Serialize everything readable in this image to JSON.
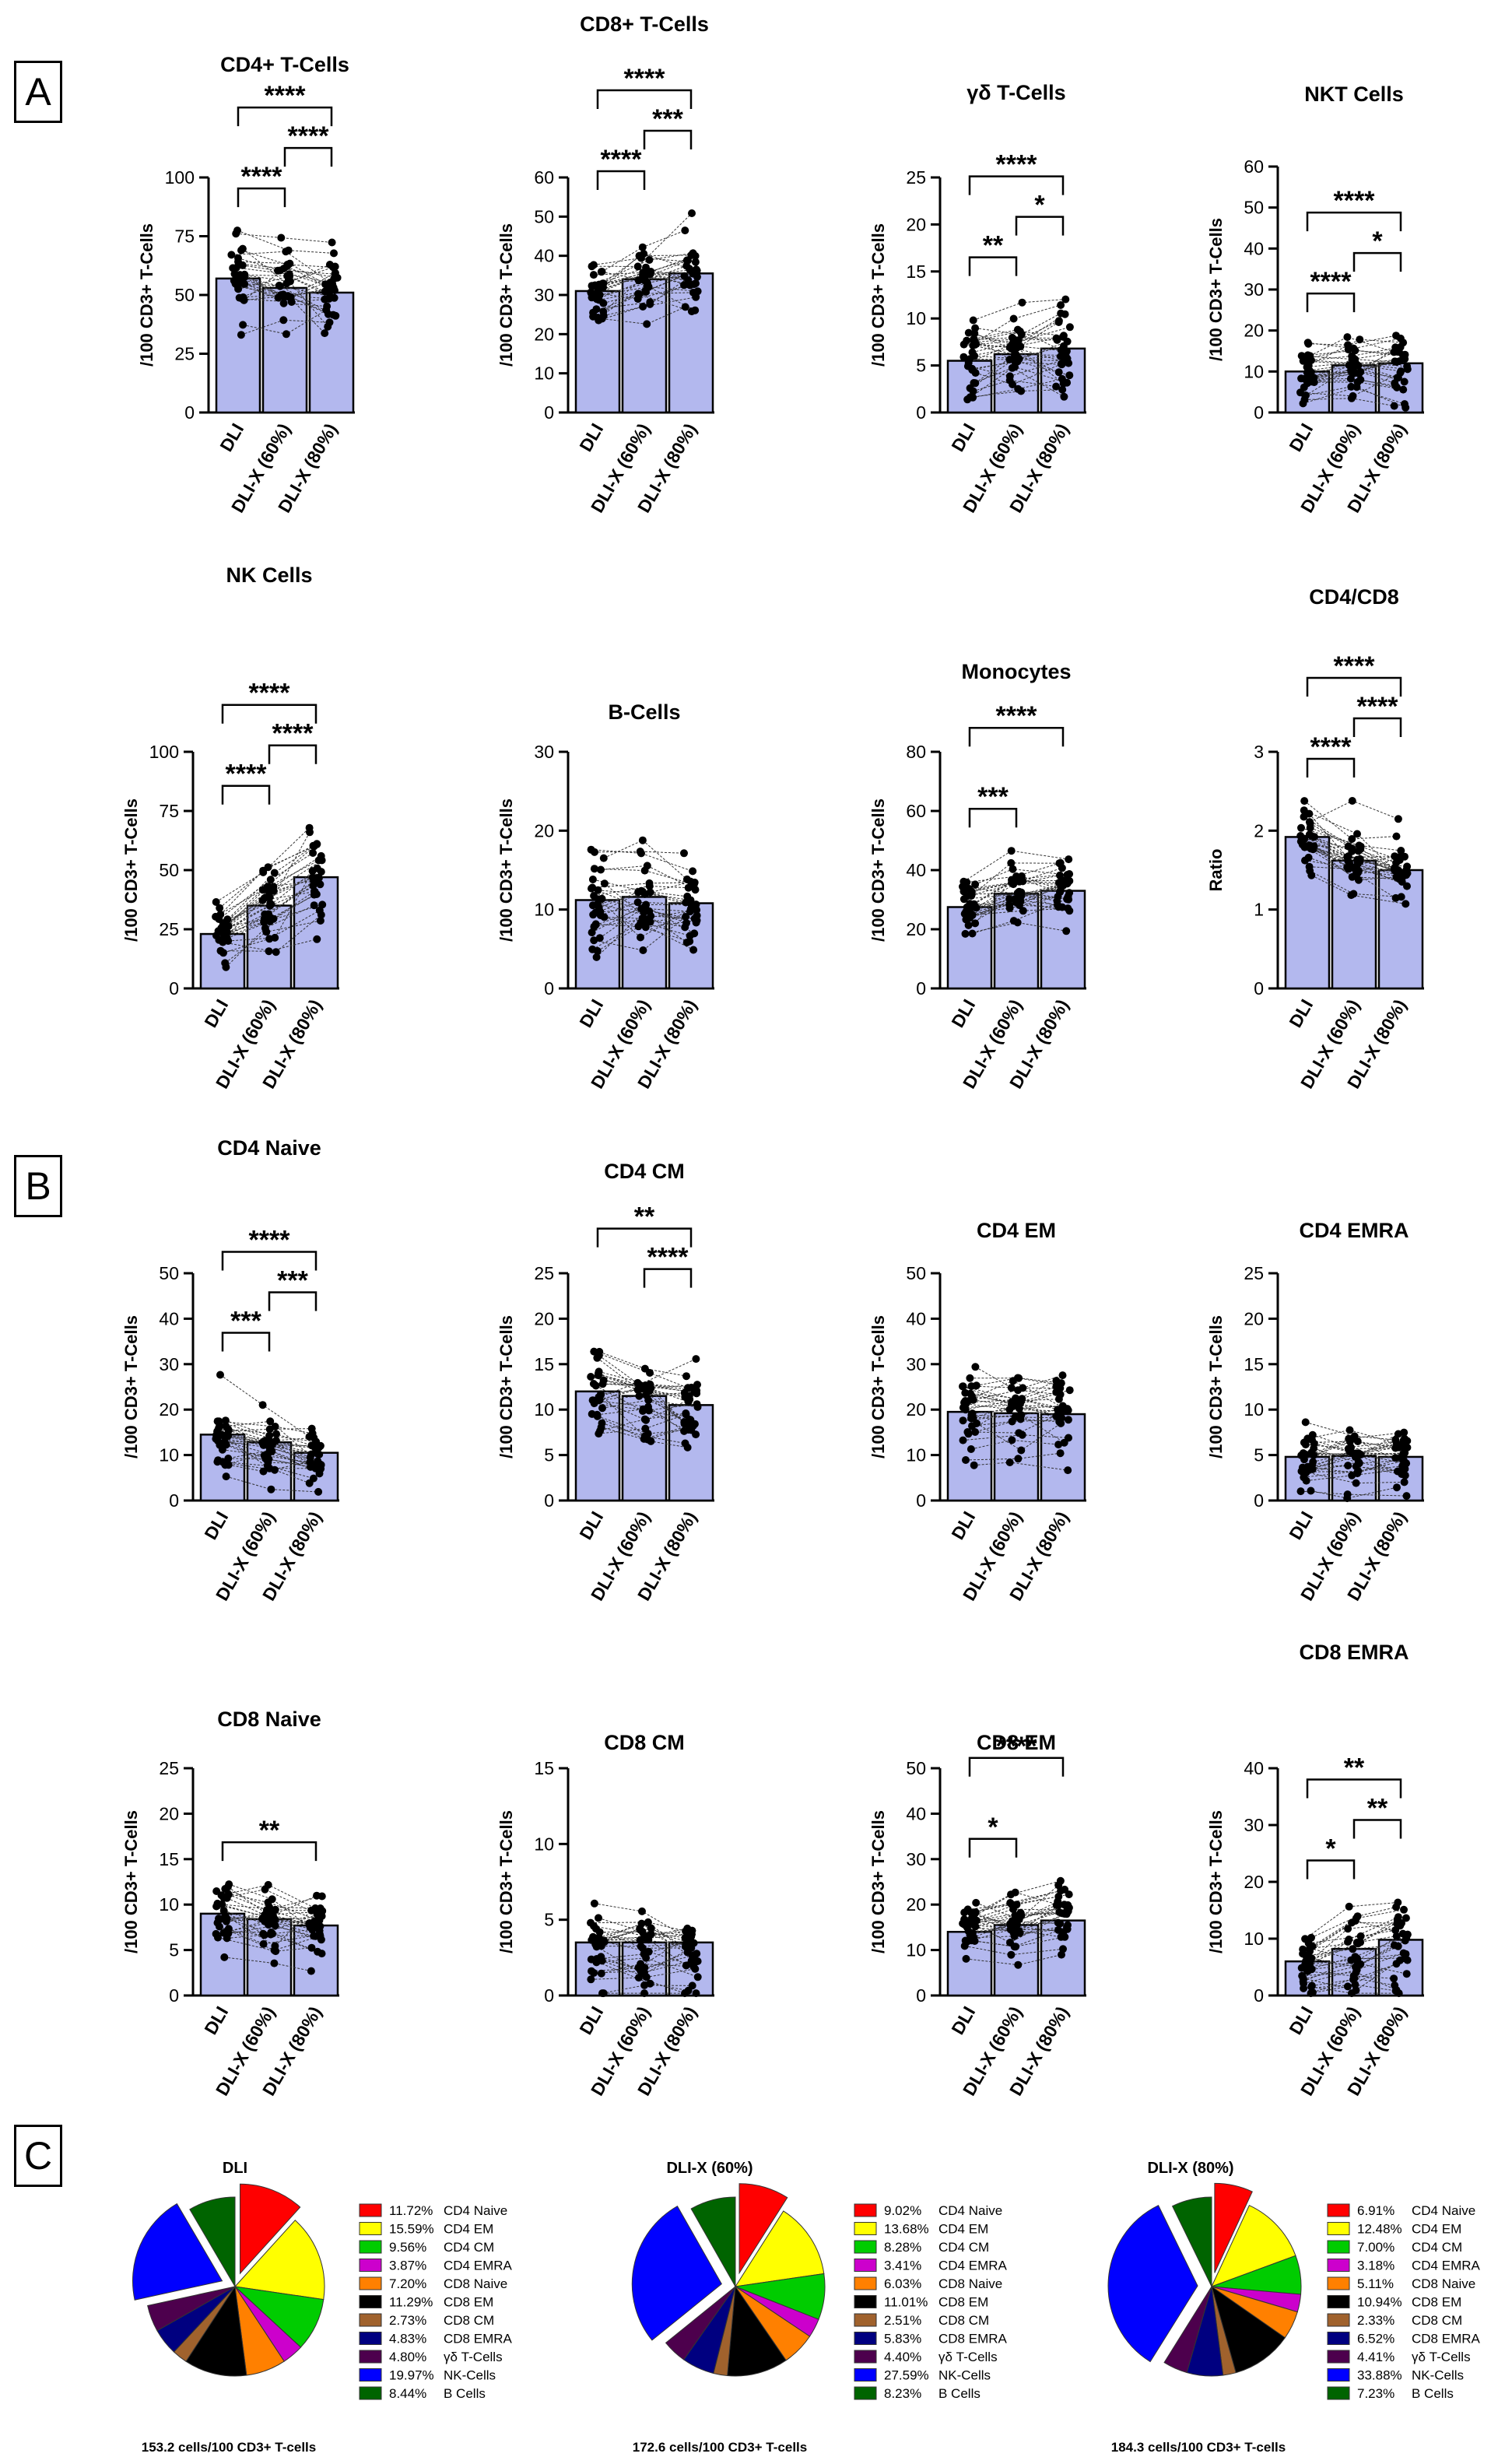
{
  "figure": {
    "panel_labels": [
      "A",
      "B",
      "C"
    ],
    "bar_color": "#b3b8ee",
    "point_color": "#000000"
  },
  "chart_data": [
    {
      "id": "cd4",
      "type": "bar",
      "title": "CD4+ T-Cells",
      "ylabel": "/100 CD3+ T-Cells",
      "categories": [
        "DLI",
        "DLI-X (60%)",
        "DLI-X (80%)"
      ],
      "values": [
        57,
        53,
        51
      ],
      "ylim": [
        0,
        100
      ],
      "yticks": [
        0,
        25,
        50,
        75,
        100
      ],
      "spread": [
        15,
        13,
        14
      ],
      "sig": [
        {
          "a": 0,
          "b": 1,
          "label": "****"
        },
        {
          "a": 1,
          "b": 2,
          "label": "****"
        },
        {
          "a": 0,
          "b": 2,
          "label": "****"
        }
      ]
    },
    {
      "id": "cd8",
      "type": "bar",
      "title": "CD8+ T-Cells",
      "ylabel": "/100 CD3+ T-Cells",
      "categories": [
        "DLI",
        "DLI-X (60%)",
        "DLI-X (80%)"
      ],
      "values": [
        31,
        34,
        35.5
      ],
      "ylim": [
        0,
        60
      ],
      "yticks": [
        0,
        10,
        20,
        30,
        40,
        50,
        60
      ],
      "spread": [
        7,
        8,
        9
      ],
      "sig": [
        {
          "a": 0,
          "b": 1,
          "label": "****"
        },
        {
          "a": 1,
          "b": 2,
          "label": "***"
        },
        {
          "a": 0,
          "b": 2,
          "label": "****"
        }
      ]
    },
    {
      "id": "gd",
      "type": "bar",
      "title": "γδ T-Cells",
      "ylabel": "/100 CD3+ T-Cells",
      "categories": [
        "DLI",
        "DLI-X (60%)",
        "DLI-X (80%)"
      ],
      "values": [
        5.5,
        6.2,
        6.8
      ],
      "ylim": [
        0,
        25
      ],
      "yticks": [
        0,
        5,
        10,
        15,
        20,
        25
      ],
      "spread": [
        4,
        4.5,
        5
      ],
      "sig": [
        {
          "a": 0,
          "b": 1,
          "label": "**"
        },
        {
          "a": 1,
          "b": 2,
          "label": "*"
        },
        {
          "a": 0,
          "b": 2,
          "label": "****"
        }
      ]
    },
    {
      "id": "nkt",
      "type": "bar",
      "title": "NKT Cells",
      "ylabel": "/100 CD3+ T-Cells",
      "categories": [
        "DLI",
        "DLI-X (60%)",
        "DLI-X (80%)"
      ],
      "values": [
        10,
        11.5,
        12
      ],
      "ylim": [
        0,
        60
      ],
      "yticks": [
        0,
        10,
        20,
        30,
        40,
        50,
        60
      ],
      "spread": [
        7,
        7.5,
        8
      ],
      "sig": [
        {
          "a": 0,
          "b": 1,
          "label": "****"
        },
        {
          "a": 1,
          "b": 2,
          "label": "*"
        },
        {
          "a": 0,
          "b": 2,
          "label": "****"
        }
      ]
    },
    {
      "id": "nk",
      "type": "bar",
      "title": "NK Cells",
      "ylabel": "/100 CD3+ T-Cells",
      "categories": [
        "DLI",
        "DLI-X (60%)",
        "DLI-X (80%)"
      ],
      "values": [
        23,
        35,
        47
      ],
      "ylim": [
        0,
        100
      ],
      "yticks": [
        0,
        25,
        50,
        75,
        100
      ],
      "spread": [
        12,
        17,
        20
      ],
      "sig": [
        {
          "a": 0,
          "b": 1,
          "label": "****"
        },
        {
          "a": 1,
          "b": 2,
          "label": "****"
        },
        {
          "a": 0,
          "b": 2,
          "label": "****"
        }
      ]
    },
    {
      "id": "bcells",
      "type": "bar",
      "title": "B-Cells",
      "ylabel": "/100 CD3+ T-Cells",
      "categories": [
        "DLI",
        "DLI-X (60%)",
        "DLI-X (80%)"
      ],
      "values": [
        11.2,
        11.6,
        10.8
      ],
      "ylim": [
        0,
        30
      ],
      "yticks": [
        0,
        10,
        20,
        30
      ],
      "spread": [
        6,
        6,
        5
      ],
      "sig": []
    },
    {
      "id": "mono",
      "type": "bar",
      "title": "Monocytes",
      "ylabel": "/100 CD3+ T-Cells",
      "categories": [
        "DLI",
        "DLI-X (60%)",
        "DLI-X (80%)"
      ],
      "values": [
        27.5,
        32,
        33
      ],
      "ylim": [
        0,
        80
      ],
      "yticks": [
        0,
        20,
        40,
        60,
        80
      ],
      "spread": [
        9,
        11,
        11
      ],
      "sig": [
        {
          "a": 0,
          "b": 1,
          "label": "***"
        },
        {
          "a": 0,
          "b": 2,
          "label": "****"
        }
      ]
    },
    {
      "id": "ratio",
      "type": "bar",
      "title": "CD4/CD8",
      "ylabel": "Ratio",
      "categories": [
        "DLI",
        "DLI-X (60%)",
        "DLI-X (80%)"
      ],
      "values": [
        1.92,
        1.62,
        1.5
      ],
      "ylim": [
        0,
        3
      ],
      "yticks": [
        0,
        1,
        2,
        3
      ],
      "spread": [
        0.45,
        0.45,
        0.45
      ],
      "sig": [
        {
          "a": 0,
          "b": 1,
          "label": "****"
        },
        {
          "a": 1,
          "b": 2,
          "label": "****"
        },
        {
          "a": 0,
          "b": 2,
          "label": "****"
        }
      ]
    },
    {
      "id": "cd4n",
      "type": "bar",
      "title": "CD4 Naive",
      "ylabel": "/100 CD3+ T-Cells",
      "categories": [
        "DLI",
        "DLI-X (60%)",
        "DLI-X (80%)"
      ],
      "values": [
        14.5,
        12.8,
        10.5
      ],
      "ylim": [
        0,
        50
      ],
      "yticks": [
        0,
        10,
        20,
        30,
        40,
        50
      ],
      "spread": [
        9,
        8,
        7
      ],
      "sig": [
        {
          "a": 0,
          "b": 1,
          "label": "***"
        },
        {
          "a": 1,
          "b": 2,
          "label": "***"
        },
        {
          "a": 0,
          "b": 2,
          "label": "****"
        }
      ]
    },
    {
      "id": "cd4cm",
      "type": "bar",
      "title": "CD4 CM",
      "ylabel": "/100 CD3+ T-Cells",
      "categories": [
        "DLI",
        "DLI-X (60%)",
        "DLI-X (80%)"
      ],
      "values": [
        12,
        11.5,
        10.5
      ],
      "ylim": [
        0,
        25
      ],
      "yticks": [
        0,
        5,
        10,
        15,
        20,
        25
      ],
      "spread": [
        5,
        5,
        5
      ],
      "sig": [
        {
          "a": 1,
          "b": 2,
          "label": "****"
        },
        {
          "a": 0,
          "b": 2,
          "label": "**"
        }
      ]
    },
    {
      "id": "cd4em",
      "type": "bar",
      "title": "CD4 EM",
      "ylabel": "/100 CD3+ T-Cells",
      "categories": [
        "DLI",
        "DLI-X (60%)",
        "DLI-X (80%)"
      ],
      "values": [
        19.5,
        19.2,
        19
      ],
      "ylim": [
        0,
        50
      ],
      "yticks": [
        0,
        10,
        20,
        30,
        40,
        50
      ],
      "spread": [
        8,
        8,
        8
      ],
      "sig": []
    },
    {
      "id": "cd4emra",
      "type": "bar",
      "title": "CD4 EMRA",
      "ylabel": "/100 CD3+ T-Cells",
      "categories": [
        "DLI",
        "DLI-X (60%)",
        "DLI-X (80%)"
      ],
      "values": [
        4.8,
        4.9,
        4.8
      ],
      "ylim": [
        0,
        25
      ],
      "yticks": [
        0,
        5,
        10,
        15,
        20,
        25
      ],
      "spread": [
        3.5,
        3.5,
        3.5
      ],
      "sig": []
    },
    {
      "id": "cd8n",
      "type": "bar",
      "title": "CD8 Naive",
      "ylabel": "/100 CD3+ T-Cells",
      "categories": [
        "DLI",
        "DLI-X (60%)",
        "DLI-X (80%)"
      ],
      "values": [
        9,
        8.4,
        7.7
      ],
      "ylim": [
        0,
        25
      ],
      "yticks": [
        0,
        5,
        10,
        15,
        20,
        25
      ],
      "spread": [
        4,
        4,
        4
      ],
      "sig": [
        {
          "a": 0,
          "b": 2,
          "label": "**"
        }
      ]
    },
    {
      "id": "cd8cm",
      "type": "bar",
      "title": "CD8 CM",
      "ylabel": "/100 CD3+ T-Cells",
      "categories": [
        "DLI",
        "DLI-X (60%)",
        "DLI-X (80%)"
      ],
      "values": [
        3.5,
        3.5,
        3.5
      ],
      "ylim": [
        0,
        15
      ],
      "yticks": [
        0,
        5,
        10,
        15
      ],
      "spread": [
        2.5,
        2.5,
        2.5
      ],
      "sig": []
    },
    {
      "id": "cd8em",
      "type": "bar",
      "title": "CD8 EM",
      "ylabel": "/100 CD3+ T-Cells",
      "categories": [
        "DLI",
        "DLI-X (60%)",
        "DLI-X (80%)"
      ],
      "values": [
        14,
        15.5,
        16.5
      ],
      "ylim": [
        0,
        50
      ],
      "yticks": [
        0,
        10,
        20,
        30,
        40,
        50
      ],
      "spread": [
        6,
        7,
        7
      ],
      "sig": [
        {
          "a": 0,
          "b": 1,
          "label": "*"
        },
        {
          "a": 0,
          "b": 2,
          "label": "****"
        }
      ]
    },
    {
      "id": "cd8emra",
      "type": "bar",
      "title": "CD8 EMRA",
      "ylabel": "/100 CD3+ T-Cells",
      "categories": [
        "DLI",
        "DLI-X (60%)",
        "DLI-X (80%)"
      ],
      "values": [
        6,
        8.2,
        9.8
      ],
      "ylim": [
        0,
        40
      ],
      "yticks": [
        0,
        10,
        20,
        30,
        40
      ],
      "spread": [
        5,
        7,
        9
      ],
      "sig": [
        {
          "a": 0,
          "b": 1,
          "label": "*"
        },
        {
          "a": 1,
          "b": 2,
          "label": "**"
        },
        {
          "a": 0,
          "b": 2,
          "label": "**"
        }
      ]
    },
    {
      "id": "pie_dli",
      "type": "pie",
      "title": "DLI",
      "total_label": "153.2 cells/100 CD3+ T-cells",
      "slices": [
        {
          "label": "CD4 Naive",
          "pct_text": "11.72%",
          "value": 11.72,
          "color": "#ff0000",
          "exploded": true
        },
        {
          "label": "CD4 EM",
          "pct_text": "15.59%",
          "value": 15.59,
          "color": "#ffff00"
        },
        {
          "label": "CD4 CM",
          "pct_text": "9.56%",
          "value": 9.56,
          "color": "#00cc00"
        },
        {
          "label": "CD4 EMRA",
          "pct_text": "3.87%",
          "value": 3.87,
          "color": "#cc00cc"
        },
        {
          "label": "CD8 Naive",
          "pct_text": "7.20%",
          "value": 7.2,
          "color": "#ff8000"
        },
        {
          "label": "CD8 EM",
          "pct_text": "11.29%",
          "value": 11.29,
          "color": "#000000"
        },
        {
          "label": "CD8 CM",
          "pct_text": "2.73%",
          "value": 2.73,
          "color": "#a0622d"
        },
        {
          "label": "CD8 EMRA",
          "pct_text": "4.83%",
          "value": 4.83,
          "color": "#000080"
        },
        {
          "label": "γδ T-Cells",
          "pct_text": "4.80%",
          "value": 4.8,
          "color": "#4d004d"
        },
        {
          "label": "NK-Cells",
          "pct_text": "19.97%",
          "value": 19.97,
          "color": "#0000ff",
          "exploded": true
        },
        {
          "label": "B Cells",
          "pct_text": "8.44%",
          "value": 8.44,
          "color": "#006400"
        }
      ]
    },
    {
      "id": "pie_dlix60",
      "type": "pie",
      "title": "DLI-X (60%)",
      "total_label": "172.6 cells/100 CD3+ T-cells",
      "slices": [
        {
          "label": "CD4 Naive",
          "pct_text": "9.02%",
          "value": 9.02,
          "color": "#ff0000",
          "exploded": true
        },
        {
          "label": "CD4 EM",
          "pct_text": "13.68%",
          "value": 13.68,
          "color": "#ffff00"
        },
        {
          "label": "CD4 CM",
          "pct_text": "8.28%",
          "value": 8.28,
          "color": "#00cc00"
        },
        {
          "label": "CD4 EMRA",
          "pct_text": "3.41%",
          "value": 3.41,
          "color": "#cc00cc"
        },
        {
          "label": "CD8 Naive",
          "pct_text": "6.03%",
          "value": 6.03,
          "color": "#ff8000"
        },
        {
          "label": "CD8 EM",
          "pct_text": "11.01%",
          "value": 11.01,
          "color": "#000000"
        },
        {
          "label": "CD8 CM",
          "pct_text": "2.51%",
          "value": 2.51,
          "color": "#a0622d"
        },
        {
          "label": "CD8 EMRA",
          "pct_text": "5.83%",
          "value": 5.83,
          "color": "#000080"
        },
        {
          "label": "γδ T-Cells",
          "pct_text": "4.40%",
          "value": 4.4,
          "color": "#4d004d"
        },
        {
          "label": "NK-Cells",
          "pct_text": "27.59%",
          "value": 27.59,
          "color": "#0000ff",
          "exploded": true
        },
        {
          "label": "B Cells",
          "pct_text": "8.23%",
          "value": 8.23,
          "color": "#006400"
        }
      ]
    },
    {
      "id": "pie_dlix80",
      "type": "pie",
      "title": "DLI-X (80%)",
      "total_label": "184.3 cells/100 CD3+ T-cells",
      "slices": [
        {
          "label": "CD4 Naive",
          "pct_text": "6.91%",
          "value": 6.91,
          "color": "#ff0000",
          "exploded": true
        },
        {
          "label": "CD4 EM",
          "pct_text": "12.48%",
          "value": 12.48,
          "color": "#ffff00"
        },
        {
          "label": "CD4 CM",
          "pct_text": "7.00%",
          "value": 7.0,
          "color": "#00cc00"
        },
        {
          "label": "CD4 EMRA",
          "pct_text": "3.18%",
          "value": 3.18,
          "color": "#cc00cc"
        },
        {
          "label": "CD8 Naive",
          "pct_text": "5.11%",
          "value": 5.11,
          "color": "#ff8000"
        },
        {
          "label": "CD8 EM",
          "pct_text": "10.94%",
          "value": 10.94,
          "color": "#000000"
        },
        {
          "label": "CD8 CM",
          "pct_text": "2.33%",
          "value": 2.33,
          "color": "#a0622d"
        },
        {
          "label": "CD8 EMRA",
          "pct_text": "6.52%",
          "value": 6.52,
          "color": "#000080"
        },
        {
          "label": "γδ T-Cells",
          "pct_text": "4.41%",
          "value": 4.41,
          "color": "#4d004d"
        },
        {
          "label": "NK-Cells",
          "pct_text": "33.88%",
          "value": 33.88,
          "color": "#0000ff",
          "exploded": true
        },
        {
          "label": "B Cells",
          "pct_text": "7.23%",
          "value": 7.23,
          "color": "#006400"
        }
      ]
    }
  ]
}
